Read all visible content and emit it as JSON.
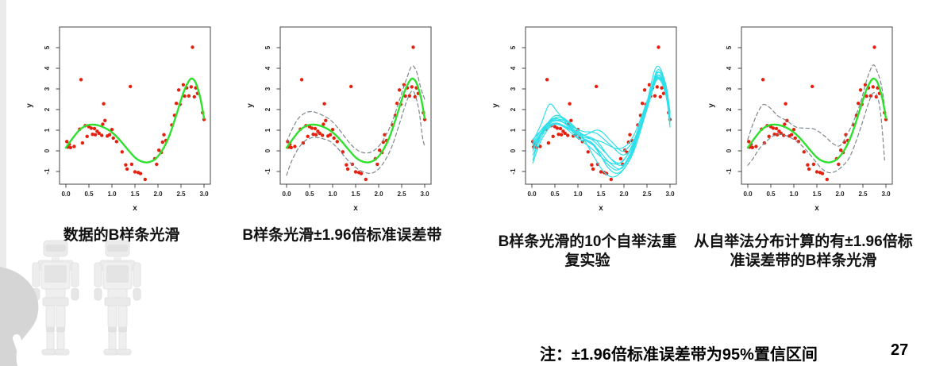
{
  "page": {
    "note": "注：±1.96倍标准误差带为95%置信区间",
    "page_number": "27"
  },
  "colors": {
    "point": "#e5200e",
    "spline": "#2fe02f",
    "bootstrap": "#2fdfea",
    "band": "#7e868e",
    "axis": "#444444",
    "tick_text": "#222222"
  },
  "chart_data": {
    "type": "scatter",
    "xlabel": "x",
    "ylabel": "y",
    "x_range": [
      0,
      3
    ],
    "y_range": [
      -1.6,
      5.6
    ],
    "x_ticks": [
      0,
      0.5,
      1,
      1.5,
      2,
      2.5,
      3
    ],
    "x_tick_labels": [
      "0.0",
      "0.5",
      "1.0",
      "1.5",
      "2.0",
      "2.5",
      "3.0"
    ],
    "y_ticks": [
      -1,
      0,
      1,
      2,
      3,
      4,
      5
    ],
    "y_tick_labels": [
      "-1",
      "0",
      "1",
      "2",
      "3",
      "4",
      "5"
    ],
    "grid": false,
    "legend": "none",
    "scatter": [
      [
        0.02,
        0.45
      ],
      [
        0.04,
        0.18
      ],
      [
        0.07,
        0.32
      ],
      [
        0.1,
        0.16
      ],
      [
        0.18,
        0.21
      ],
      [
        0.3,
        1.05
      ],
      [
        0.33,
        3.45
      ],
      [
        0.36,
        0.38
      ],
      [
        0.42,
        1.22
      ],
      [
        0.46,
        0.7
      ],
      [
        0.5,
        1.17
      ],
      [
        0.55,
        1.1
      ],
      [
        0.58,
        0.8
      ],
      [
        0.62,
        1.08
      ],
      [
        0.64,
        0.78
      ],
      [
        0.68,
        0.95
      ],
      [
        0.72,
        0.85
      ],
      [
        0.78,
        0.75
      ],
      [
        0.8,
        1.29
      ],
      [
        0.82,
        2.28
      ],
      [
        0.85,
        1.47
      ],
      [
        0.9,
        0.72
      ],
      [
        0.95,
        0.78
      ],
      [
        1.0,
        1.03
      ],
      [
        1.03,
        0.62
      ],
      [
        1.1,
        0.45
      ],
      [
        1.22,
        -0.05
      ],
      [
        1.3,
        -0.68
      ],
      [
        1.33,
        -0.88
      ],
      [
        1.4,
        3.12
      ],
      [
        1.43,
        -0.65
      ],
      [
        1.5,
        -1.02
      ],
      [
        1.57,
        -1.05
      ],
      [
        1.62,
        -1.1
      ],
      [
        1.72,
        -1.38
      ],
      [
        1.93,
        -0.38
      ],
      [
        1.97,
        -0.65
      ],
      [
        2.02,
        0.03
      ],
      [
        2.07,
        -0.08
      ],
      [
        2.1,
        0.42
      ],
      [
        2.13,
        0.78
      ],
      [
        2.17,
        0.5
      ],
      [
        2.3,
        1.25
      ],
      [
        2.36,
        1.72
      ],
      [
        2.4,
        2.3
      ],
      [
        2.45,
        2.95
      ],
      [
        2.48,
        2.25
      ],
      [
        2.55,
        3.2
      ],
      [
        2.58,
        2.65
      ],
      [
        2.62,
        3.05
      ],
      [
        2.67,
        2.66
      ],
      [
        2.72,
        3.1
      ],
      [
        2.75,
        5.02
      ],
      [
        2.79,
        2.62
      ],
      [
        2.82,
        3.05
      ],
      [
        2.86,
        2.78
      ],
      [
        2.97,
        1.85
      ],
      [
        3.0,
        1.52
      ]
    ],
    "spline": [
      [
        0.0,
        0.15
      ],
      [
        0.15,
        0.62
      ],
      [
        0.3,
        1.02
      ],
      [
        0.45,
        1.23
      ],
      [
        0.6,
        1.27
      ],
      [
        0.75,
        1.2
      ],
      [
        0.9,
        1.05
      ],
      [
        1.05,
        0.8
      ],
      [
        1.2,
        0.45
      ],
      [
        1.35,
        0.05
      ],
      [
        1.5,
        -0.32
      ],
      [
        1.65,
        -0.52
      ],
      [
        1.8,
        -0.55
      ],
      [
        1.95,
        -0.38
      ],
      [
        2.1,
        0.05
      ],
      [
        2.25,
        0.75
      ],
      [
        2.4,
        1.75
      ],
      [
        2.55,
        2.8
      ],
      [
        2.65,
        3.3
      ],
      [
        2.73,
        3.5
      ],
      [
        2.82,
        3.3
      ],
      [
        2.92,
        2.55
      ],
      [
        3.0,
        1.58
      ]
    ],
    "se_upper": [
      [
        0.0,
        0.42
      ],
      [
        0.1,
        0.95
      ],
      [
        0.25,
        1.55
      ],
      [
        0.4,
        1.83
      ],
      [
        0.52,
        1.9
      ],
      [
        0.65,
        1.85
      ],
      [
        0.8,
        1.7
      ],
      [
        0.95,
        1.5
      ],
      [
        1.1,
        1.15
      ],
      [
        1.25,
        0.72
      ],
      [
        1.4,
        0.3
      ],
      [
        1.55,
        0.02
      ],
      [
        1.7,
        -0.1
      ],
      [
        1.85,
        -0.05
      ],
      [
        2.0,
        0.22
      ],
      [
        2.15,
        0.72
      ],
      [
        2.3,
        1.45
      ],
      [
        2.45,
        2.45
      ],
      [
        2.6,
        3.45
      ],
      [
        2.72,
        4.1
      ],
      [
        2.82,
        3.85
      ],
      [
        2.92,
        3.0
      ],
      [
        3.0,
        2.5
      ]
    ],
    "se_lower": [
      [
        0.0,
        -1.18
      ],
      [
        0.1,
        -0.55
      ],
      [
        0.25,
        0.1
      ],
      [
        0.4,
        0.48
      ],
      [
        0.52,
        0.62
      ],
      [
        0.65,
        0.65
      ],
      [
        0.8,
        0.58
      ],
      [
        0.95,
        0.45
      ],
      [
        1.1,
        0.15
      ],
      [
        1.25,
        -0.25
      ],
      [
        1.4,
        -0.62
      ],
      [
        1.55,
        -0.88
      ],
      [
        1.7,
        -1.05
      ],
      [
        1.85,
        -1.08
      ],
      [
        2.0,
        -0.88
      ],
      [
        2.15,
        -0.42
      ],
      [
        2.3,
        0.28
      ],
      [
        2.45,
        1.3
      ],
      [
        2.6,
        2.35
      ],
      [
        2.72,
        2.9
      ],
      [
        2.8,
        2.65
      ],
      [
        2.88,
        1.9
      ],
      [
        2.95,
        0.7
      ],
      [
        3.0,
        0.2
      ]
    ],
    "bootstrap_curves": [
      [
        [
          0.02,
          0.45
        ],
        [
          0.2,
          1.3
        ],
        [
          0.38,
          2.25
        ],
        [
          0.55,
          1.9
        ],
        [
          0.8,
          1.2
        ],
        [
          1.1,
          0.7
        ],
        [
          1.5,
          0.45
        ],
        [
          1.9,
          0.1
        ],
        [
          2.2,
          0.7
        ],
        [
          2.5,
          2.4
        ],
        [
          2.72,
          3.75
        ],
        [
          2.85,
          3.4
        ],
        [
          3.0,
          1.85
        ]
      ],
      [
        [
          0.02,
          -0.45
        ],
        [
          0.2,
          0.8
        ],
        [
          0.45,
          1.55
        ],
        [
          0.7,
          1.35
        ],
        [
          1.0,
          0.65
        ],
        [
          1.3,
          0.1
        ],
        [
          1.6,
          -0.45
        ],
        [
          1.9,
          -0.6
        ],
        [
          2.2,
          0.3
        ],
        [
          2.5,
          2.2
        ],
        [
          2.7,
          3.6
        ],
        [
          2.85,
          3.3
        ],
        [
          3.0,
          1.6
        ]
      ],
      [
        [
          0.02,
          0.1
        ],
        [
          0.25,
          1.0
        ],
        [
          0.5,
          1.45
        ],
        [
          0.75,
          1.3
        ],
        [
          1.0,
          0.9
        ],
        [
          1.3,
          0.55
        ],
        [
          1.6,
          -0.1
        ],
        [
          1.9,
          -0.7
        ],
        [
          2.15,
          -0.2
        ],
        [
          2.45,
          1.8
        ],
        [
          2.7,
          3.5
        ],
        [
          2.9,
          2.9
        ],
        [
          3.0,
          1.5
        ]
      ],
      [
        [
          0.02,
          0.3
        ],
        [
          0.25,
          0.9
        ],
        [
          0.5,
          1.3
        ],
        [
          0.8,
          1.05
        ],
        [
          1.1,
          0.6
        ],
        [
          1.4,
          0.15
        ],
        [
          1.7,
          -0.6
        ],
        [
          1.95,
          -0.85
        ],
        [
          2.2,
          0.1
        ],
        [
          2.5,
          2.1
        ],
        [
          2.72,
          3.9
        ],
        [
          2.9,
          3.2
        ],
        [
          3.0,
          1.8
        ]
      ],
      [
        [
          0.02,
          -0.2
        ],
        [
          0.25,
          0.85
        ],
        [
          0.5,
          1.6
        ],
        [
          0.75,
          1.45
        ],
        [
          1.05,
          0.7
        ],
        [
          1.35,
          0.3
        ],
        [
          1.65,
          -0.8
        ],
        [
          1.9,
          -1.05
        ],
        [
          2.2,
          -0.1
        ],
        [
          2.5,
          2.0
        ],
        [
          2.72,
          3.45
        ],
        [
          2.9,
          2.8
        ],
        [
          3.0,
          1.3
        ]
      ],
      [
        [
          0.02,
          0.55
        ],
        [
          0.25,
          1.1
        ],
        [
          0.5,
          1.5
        ],
        [
          0.8,
          1.25
        ],
        [
          1.1,
          0.95
        ],
        [
          1.4,
          0.85
        ],
        [
          1.7,
          0.3
        ],
        [
          2.0,
          -0.2
        ],
        [
          2.25,
          0.5
        ],
        [
          2.5,
          2.3
        ],
        [
          2.7,
          3.55
        ],
        [
          2.88,
          3.1
        ],
        [
          3.0,
          1.45
        ]
      ],
      [
        [
          0.02,
          0.0
        ],
        [
          0.25,
          0.95
        ],
        [
          0.5,
          1.35
        ],
        [
          0.8,
          1.1
        ],
        [
          1.1,
          0.75
        ],
        [
          1.45,
          1.0
        ],
        [
          1.75,
          0.4
        ],
        [
          2.0,
          0.0
        ],
        [
          2.3,
          0.9
        ],
        [
          2.55,
          2.5
        ],
        [
          2.73,
          3.65
        ],
        [
          2.9,
          3.0
        ],
        [
          3.0,
          1.6
        ]
      ],
      [
        [
          0.02,
          0.25
        ],
        [
          0.25,
          1.05
        ],
        [
          0.5,
          1.7
        ],
        [
          0.75,
          1.5
        ],
        [
          1.05,
          0.85
        ],
        [
          1.35,
          -0.3
        ],
        [
          1.6,
          -1.1
        ],
        [
          1.85,
          -1.2
        ],
        [
          2.15,
          -0.3
        ],
        [
          2.45,
          1.9
        ],
        [
          2.7,
          4.05
        ],
        [
          2.9,
          3.3
        ],
        [
          3.0,
          1.9
        ]
      ],
      [
        [
          0.02,
          0.35
        ],
        [
          0.25,
          1.15
        ],
        [
          0.5,
          1.55
        ],
        [
          0.8,
          1.35
        ],
        [
          1.1,
          0.8
        ],
        [
          1.4,
          0.5
        ],
        [
          1.7,
          -0.35
        ],
        [
          1.95,
          -0.55
        ],
        [
          2.2,
          0.4
        ],
        [
          2.5,
          2.35
        ],
        [
          2.72,
          3.8
        ],
        [
          2.9,
          3.15
        ],
        [
          3.0,
          1.7
        ]
      ],
      [
        [
          0.02,
          -0.6
        ],
        [
          0.2,
          0.5
        ],
        [
          0.45,
          1.25
        ],
        [
          0.7,
          1.15
        ],
        [
          1.0,
          0.6
        ],
        [
          1.3,
          0.35
        ],
        [
          1.6,
          -0.55
        ],
        [
          1.9,
          -0.9
        ],
        [
          2.2,
          0.2
        ],
        [
          2.5,
          2.15
        ],
        [
          2.72,
          3.5
        ],
        [
          2.9,
          2.95
        ],
        [
          3.0,
          1.15
        ]
      ]
    ],
    "boot_upper": [
      [
        0.0,
        0.55
      ],
      [
        0.12,
        1.35
      ],
      [
        0.25,
        2.0
      ],
      [
        0.35,
        2.25
      ],
      [
        0.5,
        2.05
      ],
      [
        0.65,
        1.7
      ],
      [
        0.85,
        1.45
      ],
      [
        1.05,
        1.15
      ],
      [
        1.25,
        1.1
      ],
      [
        1.45,
        1.05
      ],
      [
        1.65,
        0.75
      ],
      [
        1.85,
        0.35
      ],
      [
        2.0,
        0.25
      ],
      [
        2.15,
        0.75
      ],
      [
        2.3,
        1.45
      ],
      [
        2.45,
        2.35
      ],
      [
        2.6,
        3.55
      ],
      [
        2.72,
        4.15
      ],
      [
        2.8,
        3.9
      ],
      [
        2.9,
        3.2
      ],
      [
        2.97,
        2.2
      ]
    ],
    "boot_lower": [
      [
        0.0,
        -0.7
      ],
      [
        0.12,
        -0.35
      ],
      [
        0.25,
        0.1
      ],
      [
        0.4,
        0.45
      ],
      [
        0.55,
        0.72
      ],
      [
        0.7,
        0.8
      ],
      [
        0.85,
        0.72
      ],
      [
        1.0,
        0.55
      ],
      [
        1.15,
        0.3
      ],
      [
        1.3,
        -0.05
      ],
      [
        1.45,
        -0.45
      ],
      [
        1.6,
        -0.85
      ],
      [
        1.75,
        -1.05
      ],
      [
        1.9,
        -1.0
      ],
      [
        2.05,
        -0.75
      ],
      [
        2.2,
        -0.35
      ],
      [
        2.35,
        0.45
      ],
      [
        2.5,
        1.45
      ],
      [
        2.62,
        2.3
      ],
      [
        2.72,
        2.8
      ],
      [
        2.82,
        2.6
      ],
      [
        2.9,
        1.5
      ],
      [
        2.97,
        -0.45
      ]
    ],
    "panels": [
      {
        "caption": "数据的B样条光滑",
        "elements": [
          "scatter",
          "spline"
        ]
      },
      {
        "caption": "B样条光滑±1.96倍标准误差带",
        "elements": [
          "scatter",
          "se_upper",
          "se_lower",
          "spline"
        ]
      },
      {
        "caption": "B样条光滑的10个自举法重复实验",
        "elements": [
          "scatter",
          "bootstrap_curves"
        ]
      },
      {
        "caption": "从自举法分布计算的有±1.96倍标准误差带的B样条光滑",
        "elements": [
          "scatter",
          "boot_upper",
          "boot_lower",
          "spline"
        ]
      }
    ]
  }
}
